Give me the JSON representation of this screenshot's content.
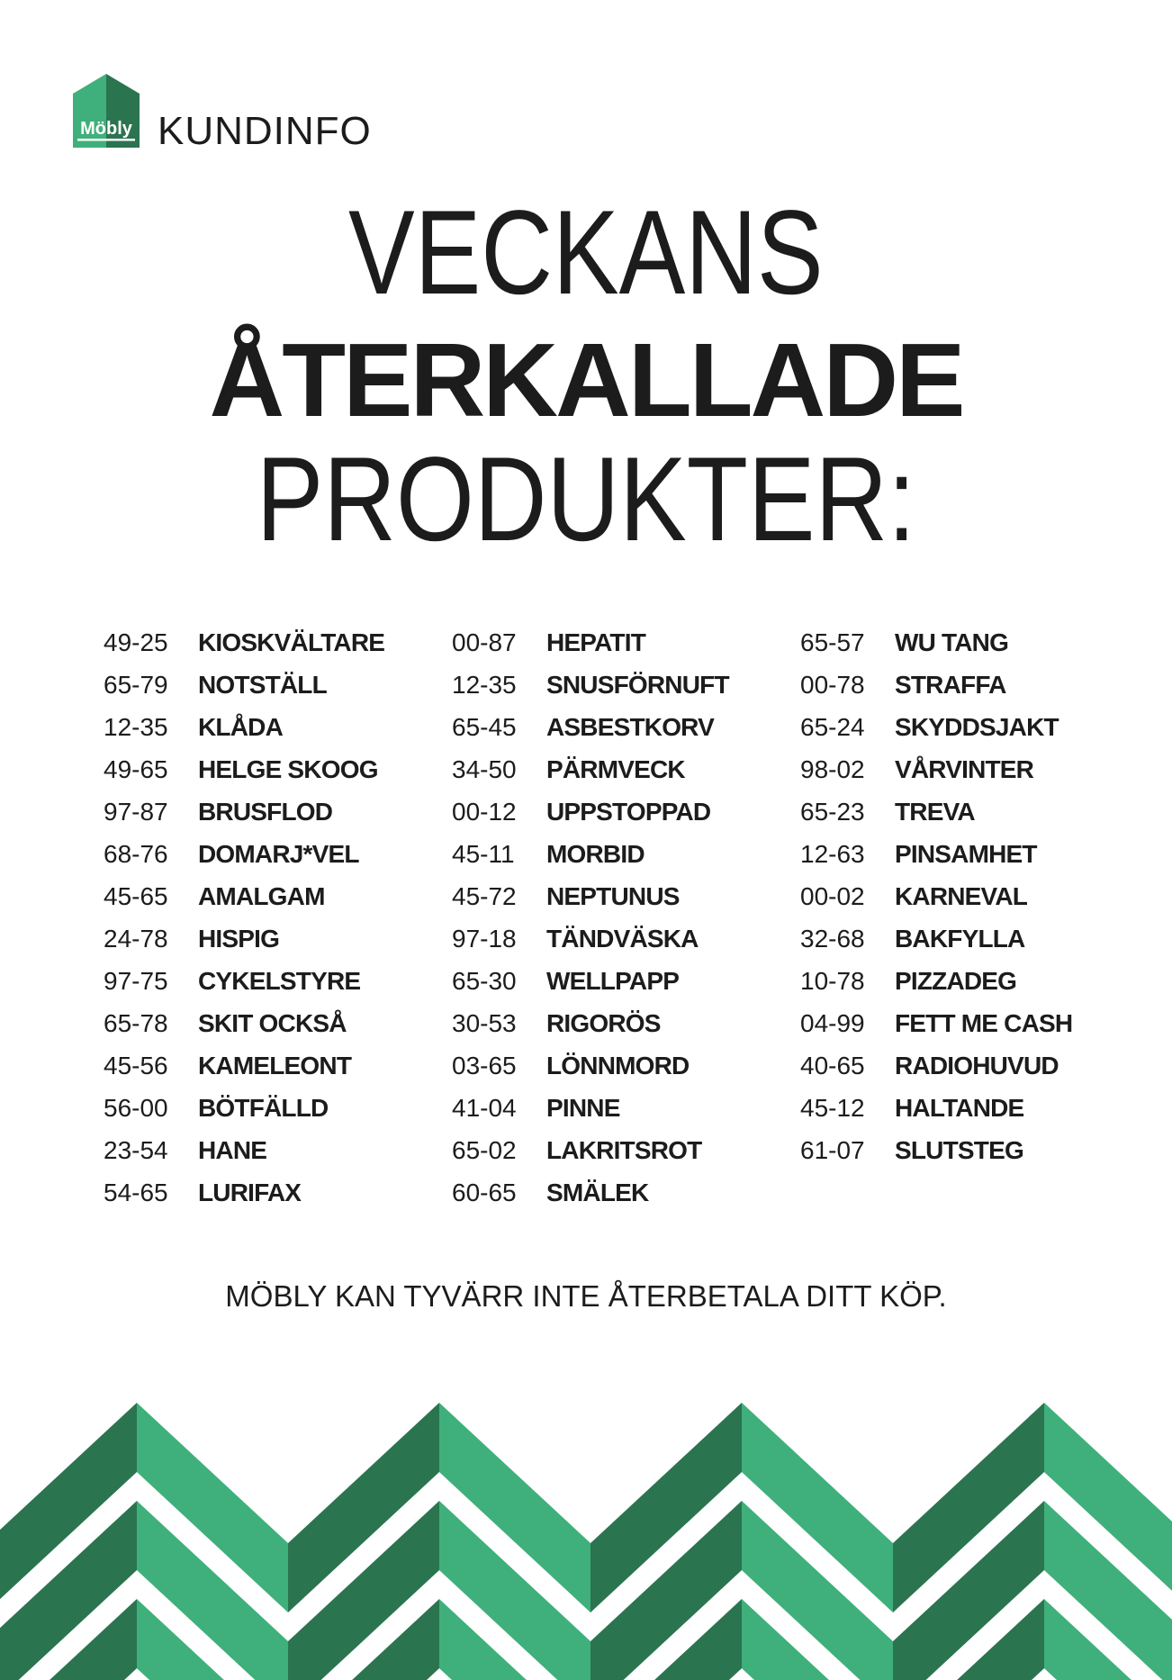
{
  "brand": {
    "logo_text": "Möbly",
    "section": "KUNDINFO",
    "colors": {
      "dark_green": "#2b7450",
      "light_green": "#3fb07b"
    }
  },
  "title": {
    "line1": "VECKANS",
    "line2": "ÅTERKALLADE",
    "line3": "PRODUKTER:"
  },
  "columns": [
    [
      {
        "code": "49-25",
        "name": "KIOSKVÄLTARE"
      },
      {
        "code": "65-79",
        "name": "NOTSTÄLL"
      },
      {
        "code": "12-35",
        "name": "KLÅDA"
      },
      {
        "code": "49-65",
        "name": "HELGE SKOOG"
      },
      {
        "code": "97-87",
        "name": "BRUSFLOD"
      },
      {
        "code": "68-76",
        "name": "DOMARJ*VEL"
      },
      {
        "code": "45-65",
        "name": "AMALGAM"
      },
      {
        "code": "24-78",
        "name": "HISPIG"
      },
      {
        "code": "97-75",
        "name": "CYKELSTYRE"
      },
      {
        "code": "65-78",
        "name": "SKIT OCKSÅ"
      },
      {
        "code": "45-56",
        "name": "KAMELEONT"
      },
      {
        "code": "56-00",
        "name": "BÖTFÄLLD"
      },
      {
        "code": "23-54",
        "name": "HANE"
      },
      {
        "code": "54-65",
        "name": "LURIFAX"
      }
    ],
    [
      {
        "code": "00-87",
        "name": "HEPATIT"
      },
      {
        "code": "12-35",
        "name": "SNUSFÖRNUFT"
      },
      {
        "code": "65-45",
        "name": "ASBESTKORV"
      },
      {
        "code": "34-50",
        "name": "PÄRMVECK"
      },
      {
        "code": "00-12",
        "name": "UPPSTOPPAD"
      },
      {
        "code": "45-11",
        "name": "MORBID"
      },
      {
        "code": "45-72",
        "name": "NEPTUNUS"
      },
      {
        "code": "97-18",
        "name": "TÄNDVÄSKA"
      },
      {
        "code": "65-30",
        "name": "WELLPAPP"
      },
      {
        "code": "30-53",
        "name": "RIGORÖS"
      },
      {
        "code": "03-65",
        "name": "LÖNNMORD"
      },
      {
        "code": "41-04",
        "name": "PINNE"
      },
      {
        "code": "65-02",
        "name": "LAKRITSROT"
      },
      {
        "code": "60-65",
        "name": "SMÄLEK"
      }
    ],
    [
      {
        "code": "65-57",
        "name": "WU TANG"
      },
      {
        "code": "00-78",
        "name": "STRAFFA"
      },
      {
        "code": "65-24",
        "name": "SKYDDSJAKT"
      },
      {
        "code": "98-02",
        "name": "VÅRVINTER"
      },
      {
        "code": "65-23",
        "name": "TREVA"
      },
      {
        "code": "12-63",
        "name": "PINSAMHET"
      },
      {
        "code": "00-02",
        "name": "KARNEVAL"
      },
      {
        "code": "32-68",
        "name": "BAKFYLLA"
      },
      {
        "code": "10-78",
        "name": "PIZZADEG"
      },
      {
        "code": "04-99",
        "name": "FETT ME CASH"
      },
      {
        "code": "40-65",
        "name": "RADIOHUVUD"
      },
      {
        "code": "45-12",
        "name": "HALTANDE"
      },
      {
        "code": "61-07",
        "name": "SLUTSTEG"
      }
    ]
  ],
  "footer": "MÖBLY KAN TYVÄRR INTE ÅTERBETALA DITT KÖP."
}
